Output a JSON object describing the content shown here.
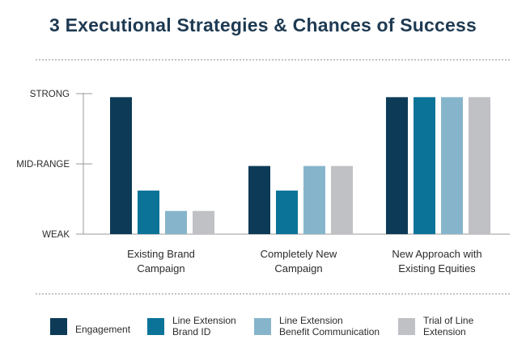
{
  "chart_data": {
    "type": "bar",
    "title": "3 Executional Strategies & Chances of Success",
    "categories": [
      [
        "Existing Brand",
        "Campaign"
      ],
      [
        "Completely New",
        "Campaign"
      ],
      [
        "New Approach with",
        "Existing Equities"
      ]
    ],
    "y_ticks": [
      "WEAK",
      "MID-RANGE",
      "STRONG"
    ],
    "ylim": [
      0,
      2
    ],
    "grid": false,
    "legend_position": "bottom",
    "series": [
      {
        "name": "Engagement",
        "color": "#0d3b57",
        "values": [
          1.95,
          0.97,
          1.95
        ]
      },
      {
        "name": "Line Extension\nBrand ID",
        "color": "#0b7398",
        "values": [
          0.62,
          0.62,
          1.95
        ]
      },
      {
        "name": "Line Extension\nBenefit Communication",
        "color": "#86b5cb",
        "values": [
          0.33,
          0.97,
          1.95
        ]
      },
      {
        "name": "Trial of Line\nExtension",
        "color": "#c0c1c4",
        "values": [
          0.33,
          0.97,
          1.95
        ]
      }
    ]
  }
}
